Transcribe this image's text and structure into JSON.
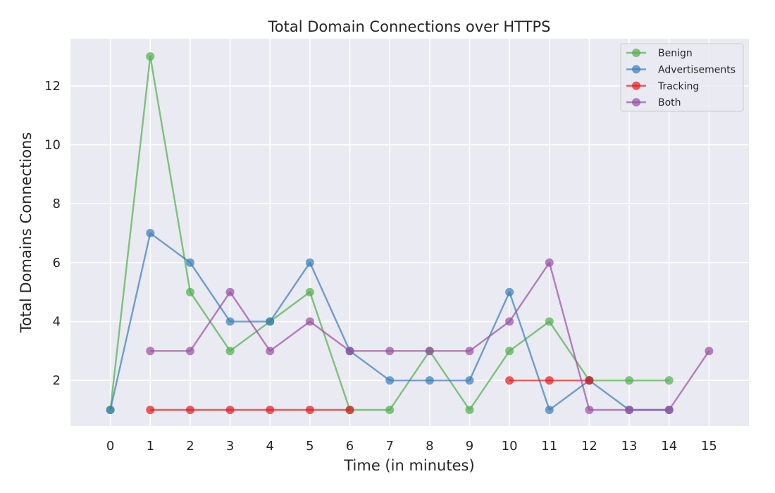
{
  "chart_data": {
    "type": "line",
    "title": "Total Domain Connections over HTTPS",
    "xlabel": "Time (in minutes)",
    "ylabel": "Total Domains Connections",
    "xlim": [
      -1,
      16
    ],
    "ylim": [
      0.45,
      13.6
    ],
    "x_ticks": [
      0,
      1,
      2,
      3,
      4,
      5,
      6,
      7,
      8,
      9,
      10,
      11,
      12,
      13,
      14,
      15
    ],
    "y_ticks": [
      2,
      4,
      6,
      8,
      10,
      12
    ],
    "grid": true,
    "legend_position": "top-right",
    "series": [
      {
        "name": "Benign",
        "color": "#4daf4a",
        "x": [
          0,
          1,
          2,
          3,
          4,
          5,
          6,
          7,
          8,
          9,
          10,
          11,
          12,
          13,
          14
        ],
        "y": [
          1,
          13,
          5,
          3,
          4,
          5,
          1,
          1,
          3,
          1,
          3,
          4,
          2,
          2,
          2
        ]
      },
      {
        "name": "Advertisements",
        "color": "#377eb8",
        "x": [
          0,
          1,
          2,
          3,
          4,
          5,
          6,
          7,
          8,
          9,
          10,
          11,
          12,
          13,
          14
        ],
        "y": [
          1,
          7,
          6,
          4,
          4,
          6,
          3,
          2,
          2,
          2,
          5,
          1,
          2,
          1,
          1
        ]
      },
      {
        "name": "Tracking",
        "color": "#e41a1c",
        "x": [
          1,
          2,
          3,
          4,
          5,
          6,
          10,
          11,
          12
        ],
        "y": [
          1,
          1,
          1,
          1,
          1,
          1,
          2,
          2,
          2
        ],
        "segments": [
          [
            0,
            5
          ],
          [
            6,
            8
          ]
        ]
      },
      {
        "name": "Both",
        "color": "#984ea3",
        "x": [
          1,
          2,
          3,
          4,
          5,
          6,
          7,
          8,
          9,
          10,
          11,
          12,
          13,
          14,
          15
        ],
        "y": [
          3,
          3,
          5,
          3,
          4,
          3,
          3,
          3,
          3,
          4,
          6,
          1,
          1,
          1,
          3
        ]
      }
    ]
  }
}
